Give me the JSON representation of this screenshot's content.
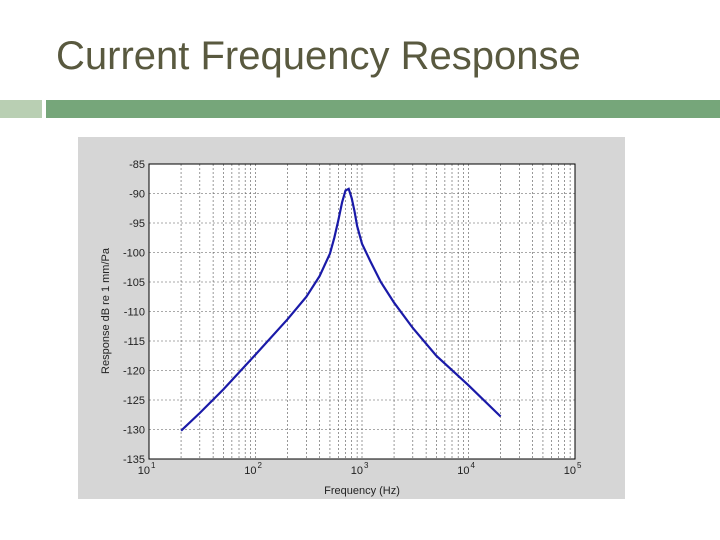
{
  "slide": {
    "title": "Current Frequency Response"
  },
  "colors": {
    "title_text": "#59593f",
    "accent_bar_light": "#b9cfb3",
    "accent_bar_dark": "#76a67a",
    "figure_background": "#d6d6d6",
    "plot_background": "#ffffff",
    "curve": "#1a1aa8"
  },
  "chart_data": {
    "type": "line",
    "title": "",
    "xlabel": "Frequency (Hz)",
    "ylabel": "Response dB re 1 mm/Pa",
    "x_scale": "log",
    "xlim": [
      10,
      100000
    ],
    "ylim": [
      -135,
      -85
    ],
    "x_ticks": [
      {
        "base": "10",
        "exp": "1"
      },
      {
        "base": "10",
        "exp": "2"
      },
      {
        "base": "10",
        "exp": "3"
      },
      {
        "base": "10",
        "exp": "4"
      },
      {
        "base": "10",
        "exp": "5"
      }
    ],
    "y_ticks": [
      "-85",
      "-90",
      "-95",
      "-100",
      "-105",
      "-110",
      "-115",
      "-120",
      "-125",
      "-130",
      "-135"
    ],
    "grid": true,
    "legend": "none",
    "series": [
      {
        "x": [
          20,
          30,
          50,
          100,
          200,
          300,
          400,
          500,
          550,
          600,
          650,
          700,
          750,
          800,
          850,
          900,
          1000,
          1200,
          1500,
          2000,
          3000,
          5000,
          10000,
          20000
        ],
        "y": [
          -130.2,
          -127.2,
          -123.2,
          -117.3,
          -111.3,
          -107.5,
          -104.0,
          -100.2,
          -97.5,
          -94.5,
          -91.5,
          -89.5,
          -89.2,
          -90.8,
          -93.0,
          -95.5,
          -98.5,
          -101.5,
          -105.0,
          -108.5,
          -112.8,
          -117.5,
          -122.5,
          -127.8
        ]
      }
    ]
  }
}
